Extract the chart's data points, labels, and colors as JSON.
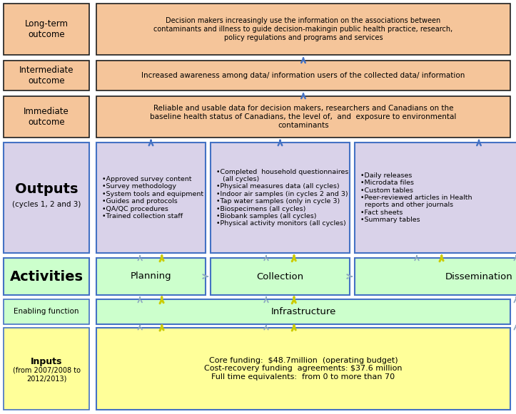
{
  "colors": {
    "orange_box": "#F5C59A",
    "orange_border": "#1F1F1F",
    "purple_box": "#D9D2E9",
    "purple_border": "#4472C4",
    "green_box": "#CCFFCC",
    "green_border": "#4472C4",
    "yellow_box": "#FFFF99",
    "yellow_border": "#4472C4",
    "black": "#000000",
    "arrow_gray": "#8EA9C1",
    "arrow_yellow": "#CCCC00"
  },
  "long_term_text": "Decision makers increasingly use the information on the associations between\ncontaminants and illness to guide decision-makingin public health practice, research,\npolicy regulations and programs and services",
  "intermediate_text": "Increased awareness among data/ information users of the collected data/ information",
  "immediate_text": "Reliable and usable data for decision makers, researchers and Canadians on the\nbaseline health status of Canadians, the level of,  and  exposure to environmental\ncontaminants",
  "planning_output_text": "•Approved survey content\n•Survey methodology\n•System tools and equipment\n•Guides and protocols\n•QA/QC procedures\n•Trained collection staff",
  "collection_output_text": "•Completed  household questionnaires\n   (all cycles)\n•Physical measures data (all cycles)\n•Indoor air samples (in cycles 2 and 3)\n•Tap water samples (only in cycle 3)\n•Biospecimens (all cycles)\n•Biobank samples (all cycles)\n•Physical activity monitors (all cycles)",
  "dissemination_output_text": "•Daily releases\n•Microdata files\n•Custom tables\n•Peer-reviewed articles in Health\n  reports and other journals\n•Fact sheets\n•Summary tables",
  "infrastructure_text": "Infrastructure",
  "inputs_text": "Core funding:  $48.7million  (operating budget)\nCost-recovery funding  agreements: $37.6 million\nFull time equivalents:  from 0 to more than 70"
}
